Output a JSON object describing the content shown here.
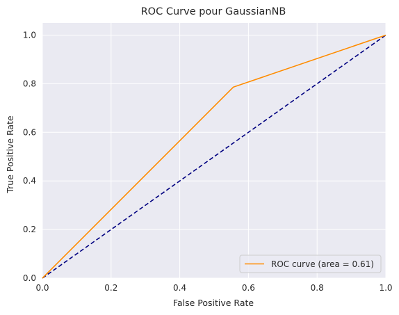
{
  "chart_data": {
    "type": "line",
    "title": "ROC Curve pour GaussianNB",
    "xlabel": "False Positive Rate",
    "ylabel": "True Positive Rate",
    "xlim": [
      0.0,
      1.0
    ],
    "ylim": [
      0.0,
      1.05
    ],
    "xticks": [
      "0.0",
      "0.2",
      "0.4",
      "0.6",
      "0.8",
      "1.0"
    ],
    "yticks": [
      "0.0",
      "0.2",
      "0.4",
      "0.6",
      "0.8",
      "1.0"
    ],
    "grid": true,
    "legend_position": "lower-right",
    "series": [
      {
        "name": "ROC curve (area = 0.61)",
        "color": "#ff8c00",
        "style": "solid",
        "x": [
          0.0,
          0.556,
          1.0
        ],
        "y": [
          0.0,
          0.786,
          1.0
        ]
      },
      {
        "color": "#000080",
        "style": "dashed",
        "x": [
          0.0,
          1.0
        ],
        "y": [
          0.0,
          1.0
        ]
      }
    ],
    "colors": {
      "plot_background": "#eaeaf2",
      "grid": "#ffffff",
      "text": "#262626"
    }
  }
}
